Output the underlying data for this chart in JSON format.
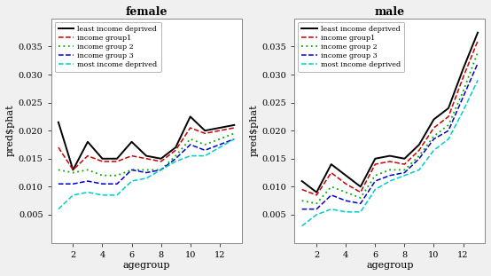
{
  "x": [
    1,
    2,
    3,
    4,
    5,
    6,
    7,
    8,
    9,
    10,
    11,
    12,
    13
  ],
  "female": {
    "least_income_deprived": [
      0.0215,
      0.013,
      0.018,
      0.015,
      0.015,
      0.018,
      0.0155,
      0.015,
      0.017,
      0.0225,
      0.02,
      0.0205,
      0.021
    ],
    "income_group1": [
      0.017,
      0.013,
      0.0155,
      0.0145,
      0.0145,
      0.0155,
      0.015,
      0.0145,
      0.0165,
      0.0205,
      0.0195,
      0.02,
      0.0205
    ],
    "income_group2": [
      0.013,
      0.0125,
      0.013,
      0.012,
      0.012,
      0.013,
      0.013,
      0.013,
      0.0155,
      0.0185,
      0.0175,
      0.0185,
      0.0195
    ],
    "income_group3": [
      0.0105,
      0.0105,
      0.011,
      0.0105,
      0.0105,
      0.013,
      0.0125,
      0.013,
      0.015,
      0.0175,
      0.0165,
      0.0175,
      0.0185
    ],
    "most_income_deprived": [
      0.006,
      0.0085,
      0.009,
      0.0085,
      0.0085,
      0.011,
      0.0115,
      0.013,
      0.0145,
      0.0155,
      0.0155,
      0.017,
      0.0185
    ]
  },
  "male": {
    "least_income_deprived": [
      0.011,
      0.009,
      0.014,
      0.012,
      0.01,
      0.015,
      0.0155,
      0.015,
      0.0175,
      0.022,
      0.024,
      0.031,
      0.0375
    ],
    "income_group1": [
      0.0095,
      0.0085,
      0.0125,
      0.0105,
      0.009,
      0.014,
      0.0145,
      0.014,
      0.0165,
      0.0205,
      0.0225,
      0.0295,
      0.036
    ],
    "income_group2": [
      0.0075,
      0.007,
      0.01,
      0.009,
      0.008,
      0.012,
      0.013,
      0.013,
      0.0155,
      0.019,
      0.021,
      0.027,
      0.034
    ],
    "income_group3": [
      0.006,
      0.006,
      0.0085,
      0.0075,
      0.007,
      0.011,
      0.012,
      0.0125,
      0.015,
      0.0185,
      0.02,
      0.026,
      0.032
    ],
    "most_income_deprived": [
      0.003,
      0.005,
      0.006,
      0.0055,
      0.0055,
      0.0095,
      0.011,
      0.012,
      0.013,
      0.0165,
      0.0185,
      0.0235,
      0.029
    ]
  },
  "line_styles": {
    "least_income_deprived": {
      "color": "#000000",
      "linestyle": "-",
      "linewidth": 1.4,
      "label": "least income deprived"
    },
    "income_group1": {
      "color": "#CC0000",
      "linestyle": "--",
      "linewidth": 1.1,
      "label": "income group1"
    },
    "income_group2": {
      "color": "#00AA00",
      "linestyle": ":",
      "linewidth": 1.3,
      "label": "income group 2"
    },
    "income_group3": {
      "color": "#0000CC",
      "linestyle": "--",
      "linewidth": 1.1,
      "label": "income group 3"
    },
    "most_income_deprived": {
      "color": "#00CCCC",
      "linestyle": "--",
      "linewidth": 1.1,
      "label": "most income deprived"
    }
  },
  "ylim": [
    0.0,
    0.04
  ],
  "yticks": [
    0.005,
    0.01,
    0.015,
    0.02,
    0.025,
    0.03,
    0.035
  ],
  "ytick_labels": [
    "0.005",
    "0.010",
    "0.015",
    "0.020",
    "0.025",
    "0.030",
    "0.035"
  ],
  "xticks": [
    2,
    4,
    6,
    8,
    10,
    12
  ],
  "xlim": [
    0.5,
    13.5
  ],
  "xlabel": "agegroup",
  "ylabel": "pred$phat",
  "titles": [
    "female",
    "male"
  ],
  "fig_bg_color": "#F0F0F0",
  "panel_bg_color": "#FFFFFF",
  "legend_bg_color": "#FFFFFF"
}
